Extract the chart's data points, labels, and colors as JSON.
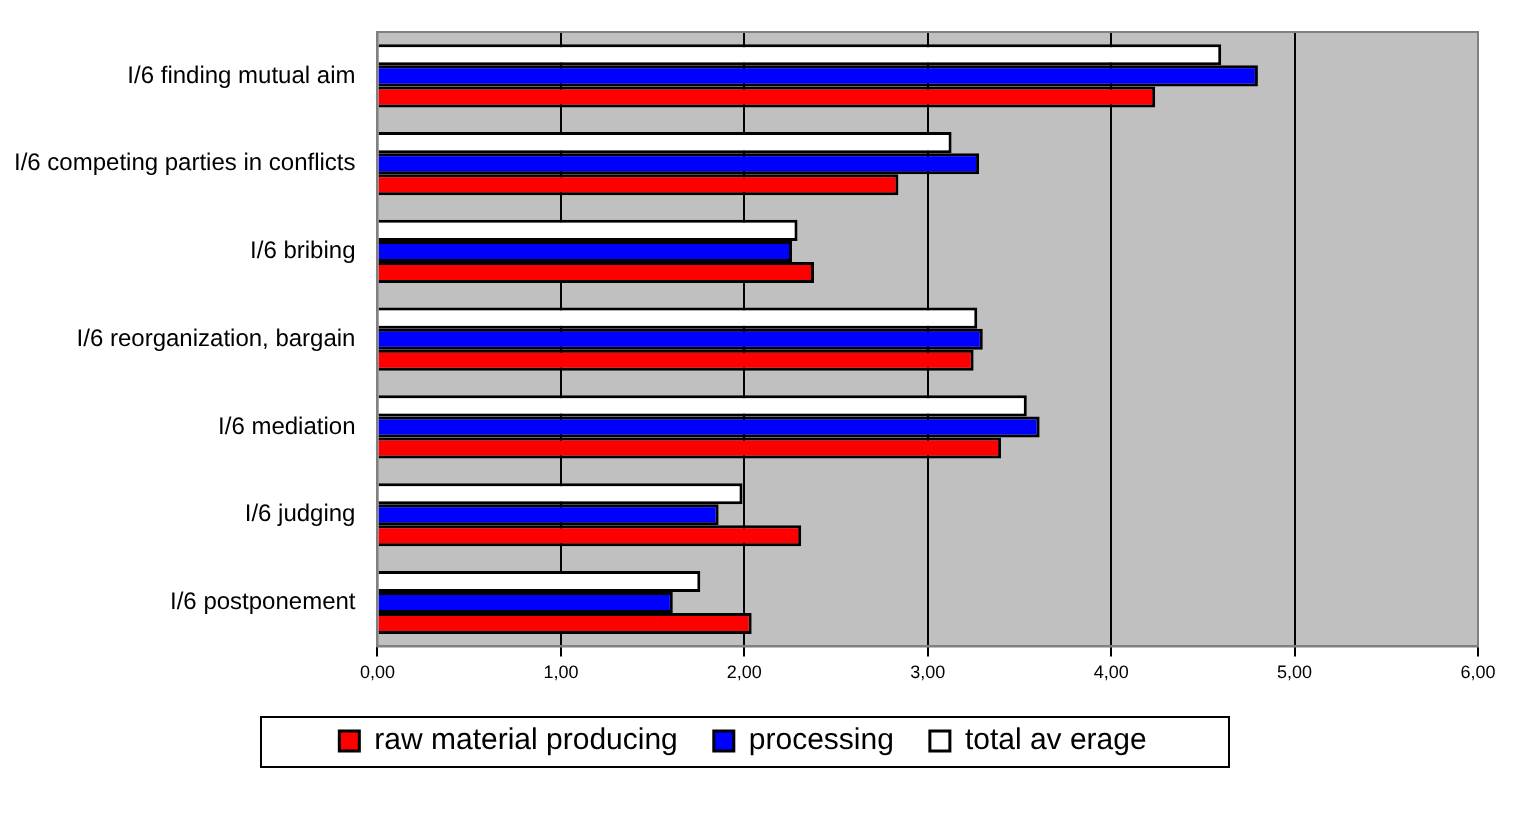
{
  "chart_data": {
    "type": "bar",
    "orientation": "horizontal",
    "categories": [
      "I/6 finding mutual aim",
      "I/6 competing parties in conflicts",
      "I/6 bribing",
      "I/6 reorganization, bargain",
      "I/6 mediation",
      "I/6 judging",
      "I/6 postponement"
    ],
    "series": [
      {
        "name": "raw material producing",
        "color": "#ff0000",
        "values": [
          4.24,
          2.84,
          2.38,
          3.25,
          3.4,
          2.31,
          2.04
        ]
      },
      {
        "name": "processing",
        "color": "#0000ff",
        "values": [
          4.8,
          3.28,
          2.26,
          3.3,
          3.61,
          1.86,
          1.61
        ]
      },
      {
        "name": "total av erage",
        "color": "#ffffff",
        "values": [
          4.6,
          3.13,
          2.29,
          3.27,
          3.54,
          1.99,
          1.76
        ]
      }
    ],
    "xlim": [
      0,
      6
    ],
    "xticks": [
      {
        "value": 0,
        "label": "0,00"
      },
      {
        "value": 1,
        "label": "1,00"
      },
      {
        "value": 2,
        "label": "2,00"
      },
      {
        "value": 3,
        "label": "3,00"
      },
      {
        "value": 4,
        "label": "4,00"
      },
      {
        "value": 5,
        "label": "5,00"
      },
      {
        "value": 6,
        "label": "6,00"
      }
    ],
    "grid": "x",
    "legend": "bottom"
  }
}
